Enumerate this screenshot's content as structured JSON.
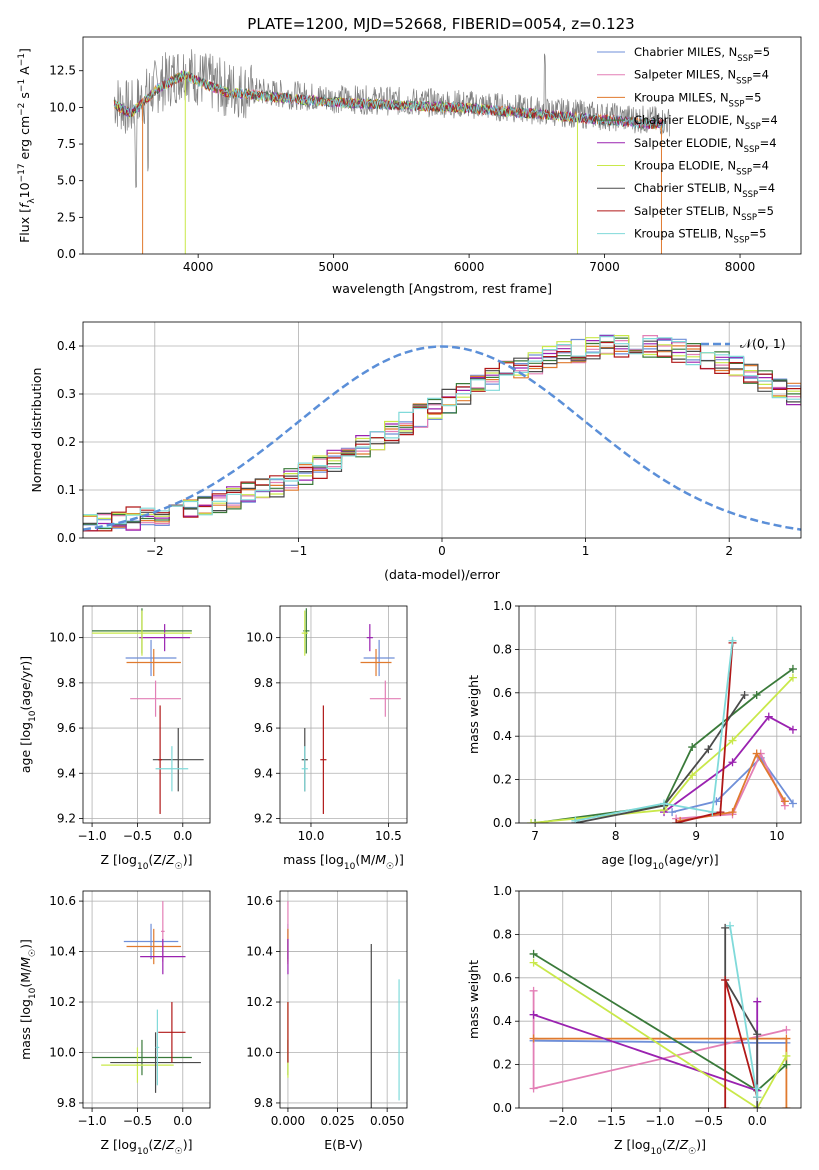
{
  "figure": {
    "title": "PLATE=1200, MJD=52668, FIBERID=0054, z=0.123"
  },
  "colors": {
    "Chabrier MILES": "#6f8fd8",
    "Salpeter MILES": "#e37fb6",
    "Kroupa MILES": "#e07a2e",
    "Chabrier ELODIE": "#3a7a3a",
    "Salpeter ELODIE": "#9a22b0",
    "Kroupa ELODIE": "#c9e84a",
    "Chabrier STELIB": "#4a4a4a",
    "Salpeter STELIB": "#b01818",
    "Kroupa STELIB": "#80dada",
    "data": "#808080",
    "normal": "#5b8fd8"
  },
  "chart_data": [
    {
      "id": "spectrum",
      "type": "line",
      "title": "PLATE=1200, MJD=52668, FIBERID=0054, z=0.123",
      "xlabel": "wavelength [Angstrom, rest frame]",
      "ylabel_parts": [
        "Flux [",
        "f",
        "λ",
        "10",
        "−17",
        " erg cm",
        "−2",
        " s",
        "−1",
        " A",
        "−1",
        "]"
      ],
      "xlim": [
        3150,
        8450
      ],
      "ylim": [
        0,
        14.8
      ],
      "xticks": [
        4000,
        5000,
        6000,
        7000,
        8000
      ],
      "yticks": [
        0.0,
        2.5,
        5.0,
        7.5,
        10.0,
        12.5
      ],
      "continuum": {
        "x": [
          3380,
          3500,
          3700,
          3900,
          4000,
          4200,
          4500,
          5000,
          5500,
          6000,
          6500,
          7000,
          7500
        ],
        "y": [
          10.5,
          9.8,
          11.5,
          12.5,
          12.0,
          11.3,
          11.0,
          10.6,
          10.4,
          10.2,
          9.8,
          9.4,
          9.0
        ]
      },
      "legend": [
        {
          "name": "Chabrier MILES",
          "N": 5
        },
        {
          "name": "Salpeter MILES",
          "N": 4
        },
        {
          "name": "Kroupa MILES",
          "N": 5
        },
        {
          "name": "Chabrier ELODIE",
          "N": 4
        },
        {
          "name": "Salpeter ELODIE",
          "N": 4
        },
        {
          "name": "Kroupa ELODIE",
          "N": 4
        },
        {
          "name": "Chabrier STELIB",
          "N": 4
        },
        {
          "name": "Salpeter STELIB",
          "N": 5
        },
        {
          "name": "Kroupa STELIB",
          "N": 5
        }
      ],
      "nssp_prefix": "N",
      "nssp_sub": "SSP"
    },
    {
      "id": "residuals",
      "type": "line",
      "xlabel": "(data-model)/error",
      "ylabel": "Normed distribution",
      "xlim": [
        -2.5,
        2.5
      ],
      "ylim": [
        0,
        0.45
      ],
      "xticks": [
        -2,
        -1,
        0,
        1,
        2
      ],
      "yticks": [
        0.0,
        0.1,
        0.2,
        0.3,
        0.4
      ],
      "legend": "𝒩(0, 1)",
      "bin_width": 0.1,
      "base_bins": [
        0.03,
        0.032,
        0.035,
        0.04,
        0.045,
        0.05,
        0.055,
        0.06,
        0.068,
        0.075,
        0.083,
        0.092,
        0.1,
        0.11,
        0.12,
        0.133,
        0.147,
        0.16,
        0.175,
        0.19,
        0.205,
        0.22,
        0.24,
        0.255,
        0.27,
        0.285,
        0.3,
        0.315,
        0.33,
        0.345,
        0.355,
        0.365,
        0.375,
        0.385,
        0.39,
        0.395,
        0.4,
        0.4,
        0.4,
        0.4,
        0.395,
        0.39,
        0.385,
        0.375,
        0.365,
        0.355,
        0.345,
        0.33,
        0.315,
        0.3
      ]
    },
    {
      "id": "age-vs-Z",
      "type": "scatter",
      "xlabel": "Z [log10(Z/Z☉)]",
      "ylabel": "age  [log10(age/yr)]",
      "xlim": [
        -1.1,
        0.3
      ],
      "ylim": [
        9.18,
        10.14
      ],
      "xticks": [
        -1.0,
        -0.5,
        0.0
      ],
      "yticks": [
        9.2,
        9.4,
        9.6,
        9.8,
        10.0
      ],
      "points": [
        {
          "m": "Chabrier MILES",
          "x": -0.35,
          "y": 9.91,
          "xe": 0.28,
          "ye": 0.08
        },
        {
          "m": "Salpeter MILES",
          "x": -0.3,
          "y": 9.73,
          "xe": 0.28,
          "ye": 0.08
        },
        {
          "m": "Kroupa MILES",
          "x": -0.32,
          "y": 9.89,
          "xe": 0.3,
          "ye": 0.06
        },
        {
          "m": "Chabrier ELODIE",
          "x": -0.45,
          "y": 10.03,
          "xe": 0.55,
          "ye": 0.1
        },
        {
          "m": "Salpeter ELODIE",
          "x": -0.2,
          "y": 10.0,
          "xe": 0.28,
          "ye": 0.06
        },
        {
          "m": "Kroupa ELODIE",
          "x": -0.45,
          "y": 10.02,
          "xe": 0.55,
          "ye": 0.1
        },
        {
          "m": "Chabrier STELIB",
          "x": -0.05,
          "y": 9.46,
          "xe": 0.28,
          "ye": 0.14
        },
        {
          "m": "Salpeter STELIB",
          "x": -0.25,
          "y": 9.46,
          "xe": 0.02,
          "ye": 0.24
        },
        {
          "m": "Kroupa STELIB",
          "x": -0.12,
          "y": 9.42,
          "xe": 0.18,
          "ye": 0.1
        }
      ]
    },
    {
      "id": "age-vs-mass",
      "type": "scatter",
      "xlabel": "mass [log10(M/M☉)]",
      "xlim": [
        9.8,
        10.62
      ],
      "ylim": [
        9.18,
        10.14
      ],
      "xticks": [
        10.0,
        10.5
      ],
      "yticks": [
        9.2,
        9.4,
        9.6,
        9.8,
        10.0
      ],
      "points": [
        {
          "m": "Chabrier MILES",
          "x": 10.44,
          "y": 9.91,
          "xe": 0.1,
          "ye": 0.08
        },
        {
          "m": "Salpeter MILES",
          "x": 10.48,
          "y": 9.73,
          "xe": 0.1,
          "ye": 0.08
        },
        {
          "m": "Kroupa MILES",
          "x": 10.42,
          "y": 9.89,
          "xe": 0.1,
          "ye": 0.06
        },
        {
          "m": "Chabrier ELODIE",
          "x": 9.97,
          "y": 10.03,
          "xe": 0.02,
          "ye": 0.1
        },
        {
          "m": "Salpeter ELODIE",
          "x": 10.38,
          "y": 10.0,
          "xe": 0.02,
          "ye": 0.06
        },
        {
          "m": "Kroupa ELODIE",
          "x": 9.96,
          "y": 10.02,
          "xe": 0.02,
          "ye": 0.1
        },
        {
          "m": "Chabrier STELIB",
          "x": 9.96,
          "y": 9.46,
          "xe": 0.02,
          "ye": 0.14
        },
        {
          "m": "Salpeter STELIB",
          "x": 10.08,
          "y": 9.46,
          "xe": 0.02,
          "ye": 0.24
        },
        {
          "m": "Kroupa STELIB",
          "x": 9.96,
          "y": 9.42,
          "xe": 0.02,
          "ye": 0.1
        }
      ]
    },
    {
      "id": "massweight-vs-age",
      "type": "line",
      "xlabel": "age  [log10(age/yr)]",
      "ylabel": "mass weight",
      "xlim": [
        6.8,
        10.3
      ],
      "ylim": [
        0,
        1.0
      ],
      "xticks": [
        7,
        8,
        9,
        10
      ],
      "yticks": [
        0.0,
        0.2,
        0.4,
        0.6,
        0.8,
        1.0
      ],
      "series": [
        {
          "m": "Chabrier MILES",
          "x": [
            8.7,
            9.25,
            9.8,
            10.2
          ],
          "y": [
            0.05,
            0.1,
            0.3,
            0.09
          ]
        },
        {
          "m": "Salpeter MILES",
          "x": [
            8.75,
            9.45,
            9.8,
            10.1
          ],
          "y": [
            0.02,
            0.04,
            0.32,
            0.08
          ]
        },
        {
          "m": "Kroupa MILES",
          "x": [
            8.8,
            9.45,
            9.75,
            10.1
          ],
          "y": [
            0.01,
            0.05,
            0.32,
            0.1
          ]
        },
        {
          "m": "Chabrier ELODIE",
          "x": [
            7.0,
            8.6,
            8.95,
            9.75,
            10.2
          ],
          "y": [
            0.0,
            0.08,
            0.35,
            0.59,
            0.71
          ]
        },
        {
          "m": "Salpeter ELODIE",
          "x": [
            8.6,
            9.45,
            9.9,
            10.2
          ],
          "y": [
            0.05,
            0.28,
            0.49,
            0.43
          ]
        },
        {
          "m": "Kroupa ELODIE",
          "x": [
            6.95,
            8.6,
            8.95,
            9.45,
            10.2
          ],
          "y": [
            0.0,
            0.06,
            0.22,
            0.38,
            0.67
          ]
        },
        {
          "m": "Chabrier STELIB",
          "x": [
            7.5,
            8.6,
            9.15,
            9.6
          ],
          "y": [
            0.0,
            0.08,
            0.34,
            0.59
          ]
        },
        {
          "m": "Salpeter STELIB",
          "x": [
            8.75,
            9.3,
            9.45
          ],
          "y": [
            0.0,
            0.05,
            0.83
          ]
        },
        {
          "m": "Kroupa STELIB",
          "x": [
            7.5,
            8.6,
            9.2,
            9.45
          ],
          "y": [
            0.01,
            0.09,
            0.05,
            0.84
          ]
        }
      ]
    },
    {
      "id": "mass-vs-Z",
      "type": "scatter",
      "xlabel": "Z [log10(Z/Z☉)]",
      "ylabel": "mass [log10(M/M☉)]",
      "xlim": [
        -1.1,
        0.3
      ],
      "ylim": [
        9.78,
        10.64
      ],
      "xticks": [
        -1.0,
        -0.5,
        0.0
      ],
      "yticks": [
        9.8,
        10.0,
        10.2,
        10.4,
        10.6
      ],
      "points": [
        {
          "m": "Chabrier MILES",
          "x": -0.35,
          "y": 10.44,
          "xe": 0.3,
          "ye": 0.07
        },
        {
          "m": "Salpeter MILES",
          "x": -0.22,
          "y": 10.48,
          "xe": 0.02,
          "ye": 0.12
        },
        {
          "m": "Kroupa MILES",
          "x": -0.32,
          "y": 10.42,
          "xe": 0.3,
          "ye": 0.07
        },
        {
          "m": "Chabrier ELODIE",
          "x": -0.45,
          "y": 9.98,
          "xe": 0.55,
          "ye": 0.07
        },
        {
          "m": "Salpeter ELODIE",
          "x": -0.22,
          "y": 10.38,
          "xe": 0.25,
          "ye": 0.07
        },
        {
          "m": "Kroupa ELODIE",
          "x": -0.5,
          "y": 9.95,
          "xe": 0.4,
          "ye": 0.07
        },
        {
          "m": "Chabrier STELIB",
          "x": -0.3,
          "y": 9.96,
          "xe": 0.5,
          "ye": 0.12
        },
        {
          "m": "Salpeter STELIB",
          "x": -0.12,
          "y": 10.08,
          "xe": 0.15,
          "ye": 0.12
        },
        {
          "m": "Kroupa STELIB",
          "x": -0.28,
          "y": 10.02,
          "xe": 0.02,
          "ye": 0.15
        }
      ]
    },
    {
      "id": "mass-vs-EBV",
      "type": "scatter",
      "xlabel": "E(B-V)",
      "xlim": [
        -0.004,
        0.06
      ],
      "ylim": [
        9.78,
        10.64
      ],
      "xticks": [
        0.0,
        0.025,
        0.05
      ],
      "yticks": [
        9.8,
        10.0,
        10.2,
        10.4,
        10.6
      ],
      "points": [
        {
          "m": "Chabrier MILES",
          "x": 0.0,
          "y": 10.44,
          "xe": 0.0,
          "ye": 0.07
        },
        {
          "m": "Salpeter MILES",
          "x": 0.0,
          "y": 10.48,
          "xe": 0.0,
          "ye": 0.12
        },
        {
          "m": "Kroupa MILES",
          "x": 0.0,
          "y": 10.42,
          "xe": 0.0,
          "ye": 0.07
        },
        {
          "m": "Chabrier ELODIE",
          "x": 0.0,
          "y": 9.98,
          "xe": 0.0,
          "ye": 0.07
        },
        {
          "m": "Salpeter ELODIE",
          "x": 0.0,
          "y": 10.38,
          "xe": 0.0,
          "ye": 0.07
        },
        {
          "m": "Kroupa ELODIE",
          "x": 0.0,
          "y": 10.05,
          "xe": 0.0,
          "ye": 0.15
        },
        {
          "m": "Chabrier STELIB",
          "x": 0.042,
          "y": 10.05,
          "xe": 0.0,
          "ye": 0.38
        },
        {
          "m": "Salpeter STELIB",
          "x": 0.0,
          "y": 10.08,
          "xe": 0.0,
          "ye": 0.12
        },
        {
          "m": "Kroupa STELIB",
          "x": 0.056,
          "y": 10.05,
          "xe": 0.0,
          "ye": 0.24
        }
      ]
    },
    {
      "id": "massweight-vs-Z",
      "type": "line",
      "xlabel": "Z [log10(Z/Z☉)]",
      "ylabel": "mass weight",
      "xlim": [
        -2.45,
        0.45
      ],
      "ylim": [
        0,
        1.0
      ],
      "xticks": [
        -2.0,
        -1.5,
        -1.0,
        -0.5,
        0.0
      ],
      "yticks": [
        0.0,
        0.2,
        0.4,
        0.6,
        0.8,
        1.0
      ],
      "series": [
        {
          "m": "Chabrier MILES",
          "x": [
            -2.3,
            0.0,
            0.3
          ],
          "y": [
            0.31,
            0.3,
            0.3
          ]
        },
        {
          "m": "Salpeter MILES",
          "x": [
            -2.3,
            -2.3,
            0.3
          ],
          "y": [
            0.54,
            0.09,
            0.36
          ]
        },
        {
          "m": "Kroupa MILES",
          "x": [
            -2.3,
            -0.33,
            0.3,
            0.3
          ],
          "y": [
            0.32,
            0.32,
            0.32,
            0.0
          ]
        },
        {
          "m": "Chabrier ELODIE",
          "x": [
            -2.3,
            0.0,
            0.3
          ],
          "y": [
            0.71,
            0.08,
            0.2
          ]
        },
        {
          "m": "Salpeter ELODIE",
          "x": [
            -2.3,
            0.0,
            0.0
          ],
          "y": [
            0.43,
            0.08,
            0.49
          ]
        },
        {
          "m": "Kroupa ELODIE",
          "x": [
            -2.3,
            0.0,
            0.3
          ],
          "y": [
            0.67,
            0.0,
            0.24
          ]
        },
        {
          "m": "Chabrier STELIB",
          "x": [
            -0.33,
            -0.33,
            0.0,
            0.0
          ],
          "y": [
            0.83,
            0.59,
            0.34,
            0.0
          ]
        },
        {
          "m": "Salpeter STELIB",
          "x": [
            -0.33,
            -0.33,
            0.0
          ],
          "y": [
            0.0,
            0.59,
            0.05
          ]
        },
        {
          "m": "Kroupa STELIB",
          "x": [
            -0.28,
            0.0,
            0.0
          ],
          "y": [
            0.84,
            0.05,
            0.09
          ]
        }
      ]
    }
  ]
}
